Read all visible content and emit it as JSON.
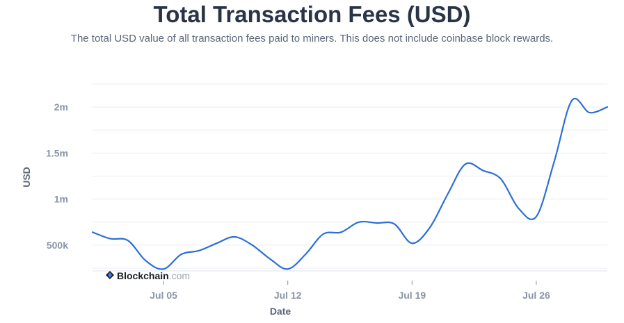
{
  "chart_data": {
    "type": "line",
    "title": "Total Transaction Fees (USD)",
    "subtitle": "The total USD value of all transaction fees paid to miners. This does not include coinbase block rewards.",
    "xlabel": "Date",
    "ylabel": "USD",
    "x_ticks": [
      "Jul 05",
      "Jul 12",
      "Jul 19",
      "Jul 26"
    ],
    "y_ticks": [
      "500k",
      "1m",
      "1.5m",
      "2m"
    ],
    "y_tick_values": [
      500000,
      1000000,
      1500000,
      2000000
    ],
    "ylim": [
      220000,
      2280000
    ],
    "xlim": [
      "2024-07-01",
      "2024-07-30"
    ],
    "grid": true,
    "colors": {
      "line": "#2b6fd6",
      "grid": "#e9ecf1"
    },
    "series": [
      {
        "values": [
          [
            "2024-07-01",
            640000
          ],
          [
            "2024-07-02",
            570000
          ],
          [
            "2024-07-03",
            550000
          ],
          [
            "2024-07-04",
            330000
          ],
          [
            "2024-07-05",
            240000
          ],
          [
            "2024-07-06",
            400000
          ],
          [
            "2024-07-07",
            440000
          ],
          [
            "2024-07-08",
            520000
          ],
          [
            "2024-07-09",
            590000
          ],
          [
            "2024-07-10",
            500000
          ],
          [
            "2024-07-11",
            350000
          ],
          [
            "2024-07-12",
            240000
          ],
          [
            "2024-07-13",
            400000
          ],
          [
            "2024-07-14",
            620000
          ],
          [
            "2024-07-15",
            640000
          ],
          [
            "2024-07-16",
            750000
          ],
          [
            "2024-07-17",
            740000
          ],
          [
            "2024-07-18",
            730000
          ],
          [
            "2024-07-19",
            520000
          ],
          [
            "2024-07-20",
            690000
          ],
          [
            "2024-07-21",
            1050000
          ],
          [
            "2024-07-22",
            1380000
          ],
          [
            "2024-07-23",
            1310000
          ],
          [
            "2024-07-24",
            1220000
          ],
          [
            "2024-07-25",
            900000
          ],
          [
            "2024-07-26",
            810000
          ],
          [
            "2024-07-27",
            1400000
          ],
          [
            "2024-07-28",
            2070000
          ],
          [
            "2024-07-29",
            1940000
          ],
          [
            "2024-07-30",
            2000000
          ]
        ]
      }
    ]
  },
  "branding": {
    "name": "Blockchain",
    "suffix": ".com",
    "icon": "blockchain-diamond-icon"
  }
}
